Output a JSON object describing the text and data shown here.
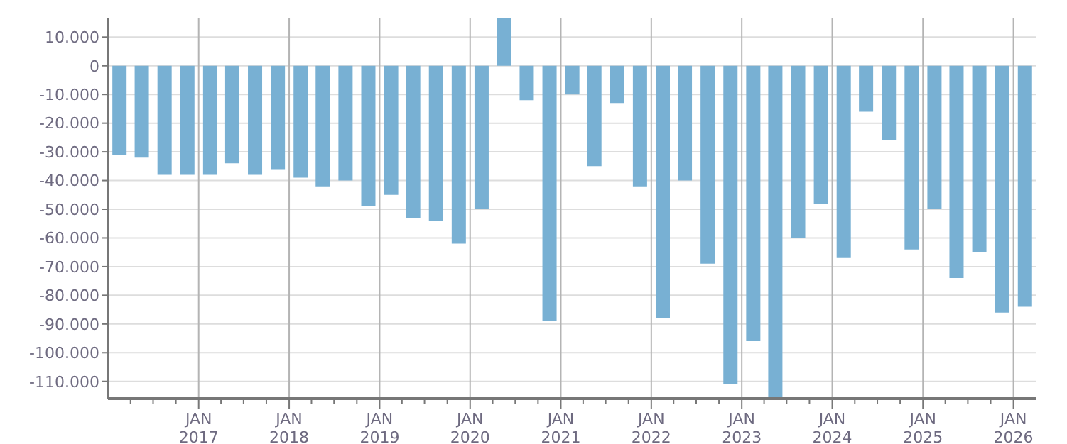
{
  "chart_data": {
    "type": "bar",
    "x": [
      "2016-02-15",
      "2016-05-15",
      "2016-08-15",
      "2016-11-15",
      "2017-02-15",
      "2017-05-15",
      "2017-08-15",
      "2017-11-15",
      "2018-02-15",
      "2018-05-15",
      "2018-08-15",
      "2018-11-15",
      "2019-02-15",
      "2019-05-15",
      "2019-08-15",
      "2019-11-15",
      "2020-02-15",
      "2020-05-15",
      "2020-08-15",
      "2020-11-15",
      "2021-02-15",
      "2021-05-15",
      "2021-08-15",
      "2021-11-15",
      "2022-02-15",
      "2022-05-15",
      "2022-08-15",
      "2022-11-15",
      "2023-02-15",
      "2023-05-15",
      "2023-08-15",
      "2023-11-15",
      "2024-02-15",
      "2024-05-15",
      "2024-08-15",
      "2024-11-15",
      "2025-02-15",
      "2025-05-15",
      "2025-08-15",
      "2025-11-15",
      "2026-02-15"
    ],
    "values": [
      -31000,
      -32000,
      -38000,
      -38000,
      -38000,
      -34000,
      -38000,
      -36000,
      -39000,
      -42000,
      -40000,
      -49000,
      -45000,
      -53000,
      -54000,
      -62000,
      -50000,
      16500,
      -12000,
      -89000,
      -10000,
      -35000,
      -13000,
      -42000,
      -88000,
      -40000,
      -69000,
      -111000,
      -96000,
      -116000,
      -60000,
      -48000,
      -67000,
      -16000,
      -26000,
      -64000,
      -50000,
      -74000,
      -65000,
      -86000,
      -84000
    ],
    "color": "#78b0d3",
    "xlim": [
      "2016-01-01",
      "2026-04-01"
    ],
    "xticks": [
      {
        "value": "2016-04-01",
        "label": null
      },
      {
        "value": "2016-07-01",
        "label": null
      },
      {
        "value": "2016-10-01",
        "label": null
      },
      {
        "value": "2017-01-01",
        "label": "JAN 2017"
      },
      {
        "value": "2017-04-01",
        "label": null
      },
      {
        "value": "2017-07-01",
        "label": null
      },
      {
        "value": "2017-10-01",
        "label": null
      },
      {
        "value": "2018-01-01",
        "label": "JAN 2018"
      },
      {
        "value": "2018-04-01",
        "label": null
      },
      {
        "value": "2018-07-01",
        "label": null
      },
      {
        "value": "2018-10-01",
        "label": null
      },
      {
        "value": "2019-01-01",
        "label": "JAN 2019"
      },
      {
        "value": "2019-04-01",
        "label": null
      },
      {
        "value": "2019-07-01",
        "label": null
      },
      {
        "value": "2019-10-01",
        "label": null
      },
      {
        "value": "2020-01-01",
        "label": "JAN 2020"
      },
      {
        "value": "2020-04-01",
        "label": null
      },
      {
        "value": "2020-07-01",
        "label": null
      },
      {
        "value": "2020-10-01",
        "label": null
      },
      {
        "value": "2021-01-01",
        "label": "JAN 2021"
      },
      {
        "value": "2021-04-01",
        "label": null
      },
      {
        "value": "2021-07-01",
        "label": null
      },
      {
        "value": "2021-10-01",
        "label": null
      },
      {
        "value": "2022-01-01",
        "label": "JAN 2022"
      },
      {
        "value": "2022-04-01",
        "label": null
      },
      {
        "value": "2022-07-01",
        "label": null
      },
      {
        "value": "2022-10-01",
        "label": null
      },
      {
        "value": "2023-01-01",
        "label": "JAN 2023"
      },
      {
        "value": "2023-04-01",
        "label": null
      },
      {
        "value": "2023-07-01",
        "label": null
      },
      {
        "value": "2023-10-01",
        "label": null
      },
      {
        "value": "2024-01-01",
        "label": "JAN 2024"
      },
      {
        "value": "2024-04-01",
        "label": null
      },
      {
        "value": "2024-07-01",
        "label": null
      },
      {
        "value": "2024-10-01",
        "label": null
      },
      {
        "value": "2025-01-01",
        "label": "JAN 2025"
      },
      {
        "value": "2025-04-01",
        "label": null
      },
      {
        "value": "2025-07-01",
        "label": null
      },
      {
        "value": "2025-10-01",
        "label": null
      },
      {
        "value": "2026-01-01",
        "label": "JAN 2026"
      }
    ],
    "ylim": [
      -116000,
      16500
    ],
    "yticks": [
      {
        "value": 10000,
        "label": "10.000"
      },
      {
        "value": 0,
        "label": "0"
      },
      {
        "value": -10000,
        "label": "-10.000"
      },
      {
        "value": -20000,
        "label": "-20.000"
      },
      {
        "value": -30000,
        "label": "-30.000"
      },
      {
        "value": -40000,
        "label": "-40.000"
      },
      {
        "value": -50000,
        "label": "-50.000"
      },
      {
        "value": -60000,
        "label": "-60.000"
      },
      {
        "value": -70000,
        "label": "-70.000"
      },
      {
        "value": -80000,
        "label": "-80.000"
      },
      {
        "value": -90000,
        "label": "-90.000"
      },
      {
        "value": -100000,
        "label": "-100.000"
      },
      {
        "value": -110000,
        "label": "-110.000"
      }
    ],
    "grid": true
  }
}
